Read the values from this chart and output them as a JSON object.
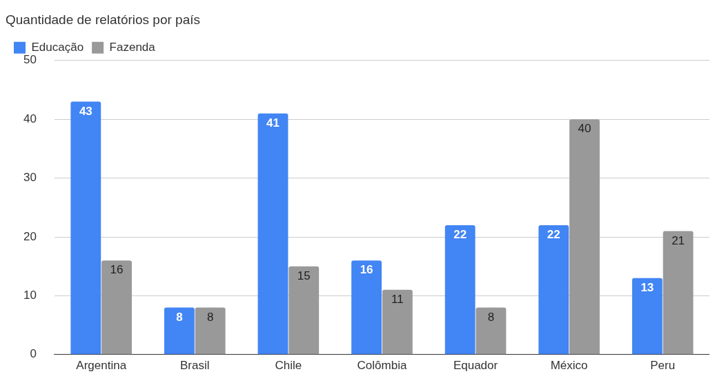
{
  "chart_data": {
    "type": "bar",
    "title": "Quantidade de relatórios por país",
    "categories": [
      "Argentina",
      "Brasil",
      "Chile",
      "Colômbia",
      "Equador",
      "México",
      "Peru"
    ],
    "series": [
      {
        "name": "Educação",
        "color": "#4285f4",
        "values": [
          43,
          8,
          41,
          16,
          22,
          22,
          13
        ]
      },
      {
        "name": "Fazenda",
        "color": "#999999",
        "values": [
          16,
          8,
          15,
          11,
          8,
          40,
          21
        ]
      }
    ],
    "ylim": [
      0,
      50
    ],
    "yticks": [
      0,
      10,
      20,
      30,
      40,
      50
    ],
    "grid": "y",
    "legend": "top left",
    "data_labels": true
  }
}
